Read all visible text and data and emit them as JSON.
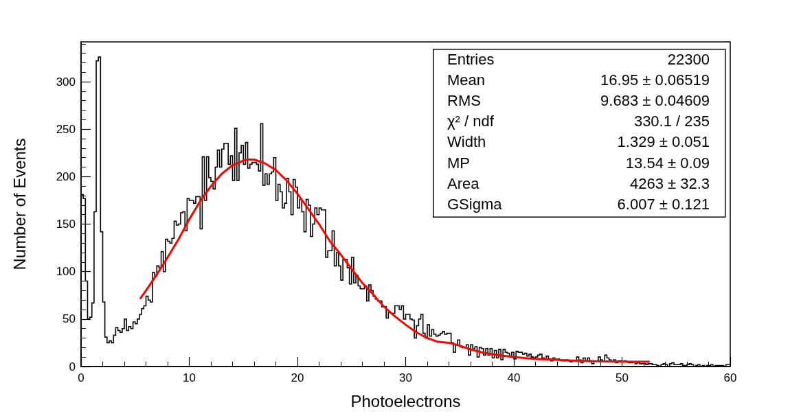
{
  "chart_data": {
    "type": "histogram",
    "xlabel": "Photoelectrons",
    "ylabel": "Number of Events",
    "color": "#000000",
    "xlim": [
      0,
      60
    ],
    "ylim": [
      0,
      342
    ],
    "xticks": [
      0,
      10,
      20,
      30,
      40,
      50,
      60
    ],
    "yticks": [
      0,
      50,
      100,
      150,
      200,
      250,
      300
    ],
    "bins": [
      0,
      0.2,
      0.4,
      0.6,
      0.8,
      1,
      1.2,
      1.4,
      1.6,
      1.8,
      2,
      2.2,
      2.4,
      2.6,
      2.8,
      3,
      3.2,
      3.4,
      3.6,
      3.8,
      4,
      4.2,
      4.4,
      4.6,
      4.8,
      5,
      5.2,
      5.4,
      5.6,
      5.8,
      6,
      6.2,
      6.4,
      6.6,
      6.8,
      7,
      7.2,
      7.4,
      7.6,
      7.8,
      8,
      8.2,
      8.4,
      8.6,
      8.8,
      9,
      9.2,
      9.4,
      9.6,
      9.8,
      10,
      10.2,
      10.4,
      10.6,
      10.8,
      11,
      11.2,
      11.4,
      11.6,
      11.8,
      12,
      12.2,
      12.4,
      12.6,
      12.8,
      13,
      13.2,
      13.4,
      13.6,
      13.8,
      14,
      14.2,
      14.4,
      14.6,
      14.8,
      15,
      15.2,
      15.4,
      15.6,
      15.8,
      16,
      16.2,
      16.4,
      16.6,
      16.8,
      17,
      17.2,
      17.4,
      17.6,
      17.8,
      18,
      18.2,
      18.4,
      18.6,
      18.8,
      19,
      19.2,
      19.4,
      19.6,
      19.8,
      20,
      20.2,
      20.4,
      20.6,
      20.8,
      21,
      21.2,
      21.4,
      21.6,
      21.8,
      22,
      22.2,
      22.4,
      22.6,
      22.8,
      23,
      23.2,
      23.4,
      23.6,
      23.8,
      24,
      24.2,
      24.4,
      24.6,
      24.8,
      25,
      25.2,
      25.4,
      25.6,
      25.8,
      26,
      26.2,
      26.4,
      26.6,
      26.8,
      27,
      27.2,
      27.4,
      27.6,
      27.8,
      28,
      28.2,
      28.4,
      28.6,
      28.8,
      29,
      29.2,
      29.4,
      29.6,
      29.8,
      30,
      30.2,
      30.4,
      30.6,
      30.8,
      31,
      31.2,
      31.4,
      31.6,
      31.8,
      32,
      32.2,
      32.4,
      32.6,
      32.8,
      33,
      33.2,
      33.4,
      33.6,
      33.8,
      34,
      34.2,
      34.4,
      34.6,
      34.8,
      35,
      35.2,
      35.4,
      35.6,
      35.8,
      36,
      36.2,
      36.4,
      36.6,
      36.8,
      37,
      37.2,
      37.4,
      37.6,
      37.8,
      38,
      38.2,
      38.4,
      38.6,
      38.8,
      39,
      39.2,
      39.4,
      39.6,
      39.8,
      40,
      40.2,
      40.4,
      40.6,
      40.8,
      41,
      41.2,
      41.4,
      41.6,
      41.8,
      42,
      42.2,
      42.4,
      42.6,
      42.8,
      43,
      43.2,
      43.4,
      43.6,
      43.8,
      44,
      44.2,
      44.4,
      44.6,
      44.8,
      45,
      45.2,
      45.4,
      45.6,
      45.8,
      46,
      46.2,
      46.4,
      46.6,
      46.8,
      47,
      47.2,
      47.4,
      47.6,
      47.8,
      48,
      48.2,
      48.4,
      48.6,
      48.8,
      49,
      49.2,
      49.4,
      49.6,
      49.8,
      50,
      50.2,
      50.4,
      50.6,
      50.8,
      51,
      51.2,
      51.4,
      51.6,
      51.8,
      52,
      52.2,
      52.4,
      52.6,
      52.8,
      53,
      53.2,
      53.4,
      53.6,
      53.8,
      54,
      54.2,
      54.4,
      54.6,
      54.8,
      55,
      55.2,
      55.4,
      55.6,
      55.8,
      56,
      56.2,
      56.4,
      56.6,
      56.8,
      57,
      57.2,
      57.4,
      57.6,
      57.8,
      58,
      58.2,
      58.4,
      58.6,
      58.8,
      59,
      59.2,
      59.4,
      59.6,
      59.8,
      60
    ],
    "values": [
      181,
      177,
      90,
      50,
      52,
      67,
      163,
      322,
      326,
      142,
      68,
      31,
      25,
      27,
      25,
      33,
      41,
      38,
      36,
      40,
      50,
      38,
      42,
      40,
      47,
      45,
      50,
      55,
      61,
      64,
      74,
      70,
      68,
      99,
      95,
      106,
      104,
      121,
      100,
      134,
      132,
      130,
      135,
      153,
      149,
      150,
      162,
      163,
      143,
      177,
      175,
      175,
      172,
      179,
      179,
      145,
      221,
      175,
      221,
      199,
      195,
      187,
      210,
      228,
      210,
      229,
      235,
      235,
      213,
      222,
      196,
      251,
      196,
      225,
      233,
      213,
      236,
      209,
      213,
      215,
      215,
      213,
      206,
      256,
      191,
      203,
      192,
      203,
      205,
      220,
      175,
      192,
      184,
      167,
      172,
      198,
      184,
      160,
      197,
      189,
      167,
      176,
      163,
      142,
      176,
      170,
      137,
      150,
      167,
      160,
      167,
      165,
      165,
      115,
      122,
      122,
      143,
      106,
      120,
      106,
      91,
      113,
      113,
      104,
      87,
      115,
      88,
      96,
      85,
      82,
      82,
      85,
      69,
      86,
      80,
      74,
      71,
      69,
      69,
      63,
      63,
      51,
      57,
      56,
      56,
      64,
      64,
      60,
      64,
      50,
      55,
      55,
      50,
      49,
      30,
      43,
      50,
      55,
      35,
      30,
      44,
      32,
      39,
      34,
      32,
      33,
      35,
      37,
      34,
      35,
      35,
      25,
      15,
      23,
      28,
      21,
      20,
      20,
      23,
      12,
      23,
      19,
      21,
      10,
      20,
      19,
      12,
      19,
      12,
      19,
      9,
      17,
      9,
      18,
      7,
      18,
      15,
      14,
      10,
      15,
      8,
      16,
      15,
      15,
      13,
      14,
      11,
      13,
      10,
      9,
      10,
      12,
      13,
      9,
      7,
      11,
      8,
      6,
      9,
      7,
      8,
      7,
      6,
      6,
      7,
      6,
      5,
      6,
      6,
      10,
      7,
      4,
      9,
      6,
      9,
      5,
      3,
      6,
      6,
      10,
      7,
      5,
      12,
      9,
      7,
      5,
      7,
      4,
      6,
      6,
      5,
      6,
      5,
      4,
      4,
      5,
      3,
      4,
      3,
      3,
      3,
      2,
      3,
      3,
      2,
      2,
      1,
      0,
      2,
      3,
      2,
      0,
      3,
      4,
      2,
      2,
      2,
      3,
      1,
      1,
      2,
      3,
      2,
      0,
      1,
      2,
      0,
      1,
      0,
      1,
      1,
      2,
      0,
      1,
      1,
      1,
      1,
      0,
      2,
      2
    ],
    "series": [
      {
        "type": "line",
        "color": "#ff0000",
        "x": [
          5.5,
          6,
          7,
          8,
          9,
          10,
          11,
          12,
          13,
          14,
          15,
          15.5,
          16,
          17,
          18,
          19,
          20,
          21,
          22,
          23,
          24,
          25,
          26,
          27,
          28,
          29,
          30,
          31,
          32,
          33,
          34,
          35,
          36,
          37,
          38,
          40,
          42,
          44,
          46,
          48,
          50,
          52.5
        ],
        "values": [
          72,
          80,
          97,
          115,
          134,
          155,
          174,
          190,
          203,
          212,
          217,
          218,
          218,
          214,
          207,
          196,
          182,
          166,
          150,
          132,
          118,
          103,
          88,
          76,
          63,
          53,
          44,
          36,
          30,
          26,
          25,
          22,
          18,
          15,
          13,
          10,
          8,
          7,
          6,
          5.5,
          5,
          5
        ]
      }
    ],
    "annotations": [
      "Entries",
      "22300",
      "Mean",
      "16.95 ± 0.06519",
      "RMS",
      "9.683 ± 0.04609",
      "χ² / ndf",
      "330.1 / 235",
      "Width",
      "1.329 ± 0.051",
      "MP",
      "13.54 ± 0.09",
      "Area",
      "4263 ± 32.3",
      "GSigma",
      "6.007 ± 0.121"
    ]
  }
}
